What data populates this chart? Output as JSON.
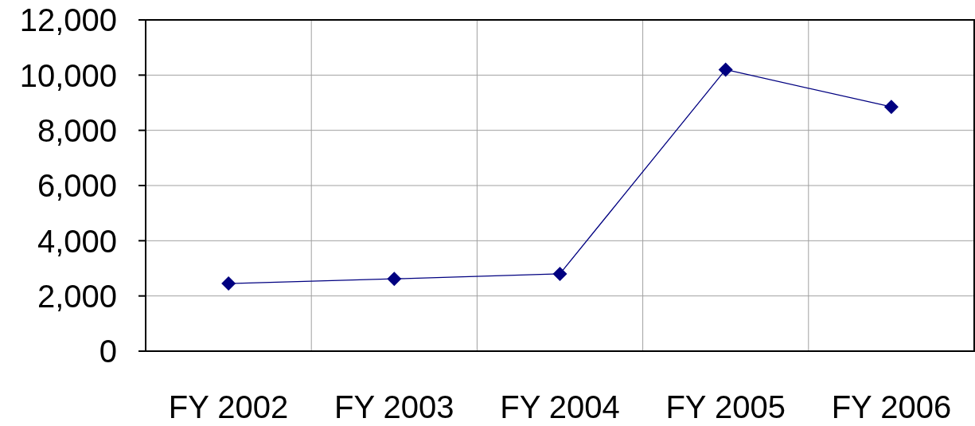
{
  "chart_data": {
    "type": "line",
    "categories": [
      "FY 2002",
      "FY 2003",
      "FY 2004",
      "FY 2005",
      "FY 2006"
    ],
    "series": [
      {
        "color": "#000080",
        "values": [
          2450,
          2620,
          2800,
          10200,
          8850
        ]
      }
    ],
    "ylim": [
      0,
      12000
    ],
    "yticks": [
      {
        "value": 0,
        "label": "0"
      },
      {
        "value": 2000,
        "label": "2,000"
      },
      {
        "value": 4000,
        "label": "4,000"
      },
      {
        "value": 6000,
        "label": "6,000"
      },
      {
        "value": 8000,
        "label": "8,000"
      },
      {
        "value": 10000,
        "label": "10,000"
      },
      {
        "value": 12000,
        "label": "12,000"
      }
    ],
    "grid": true,
    "marker": "diamond",
    "line_style": "solid"
  }
}
